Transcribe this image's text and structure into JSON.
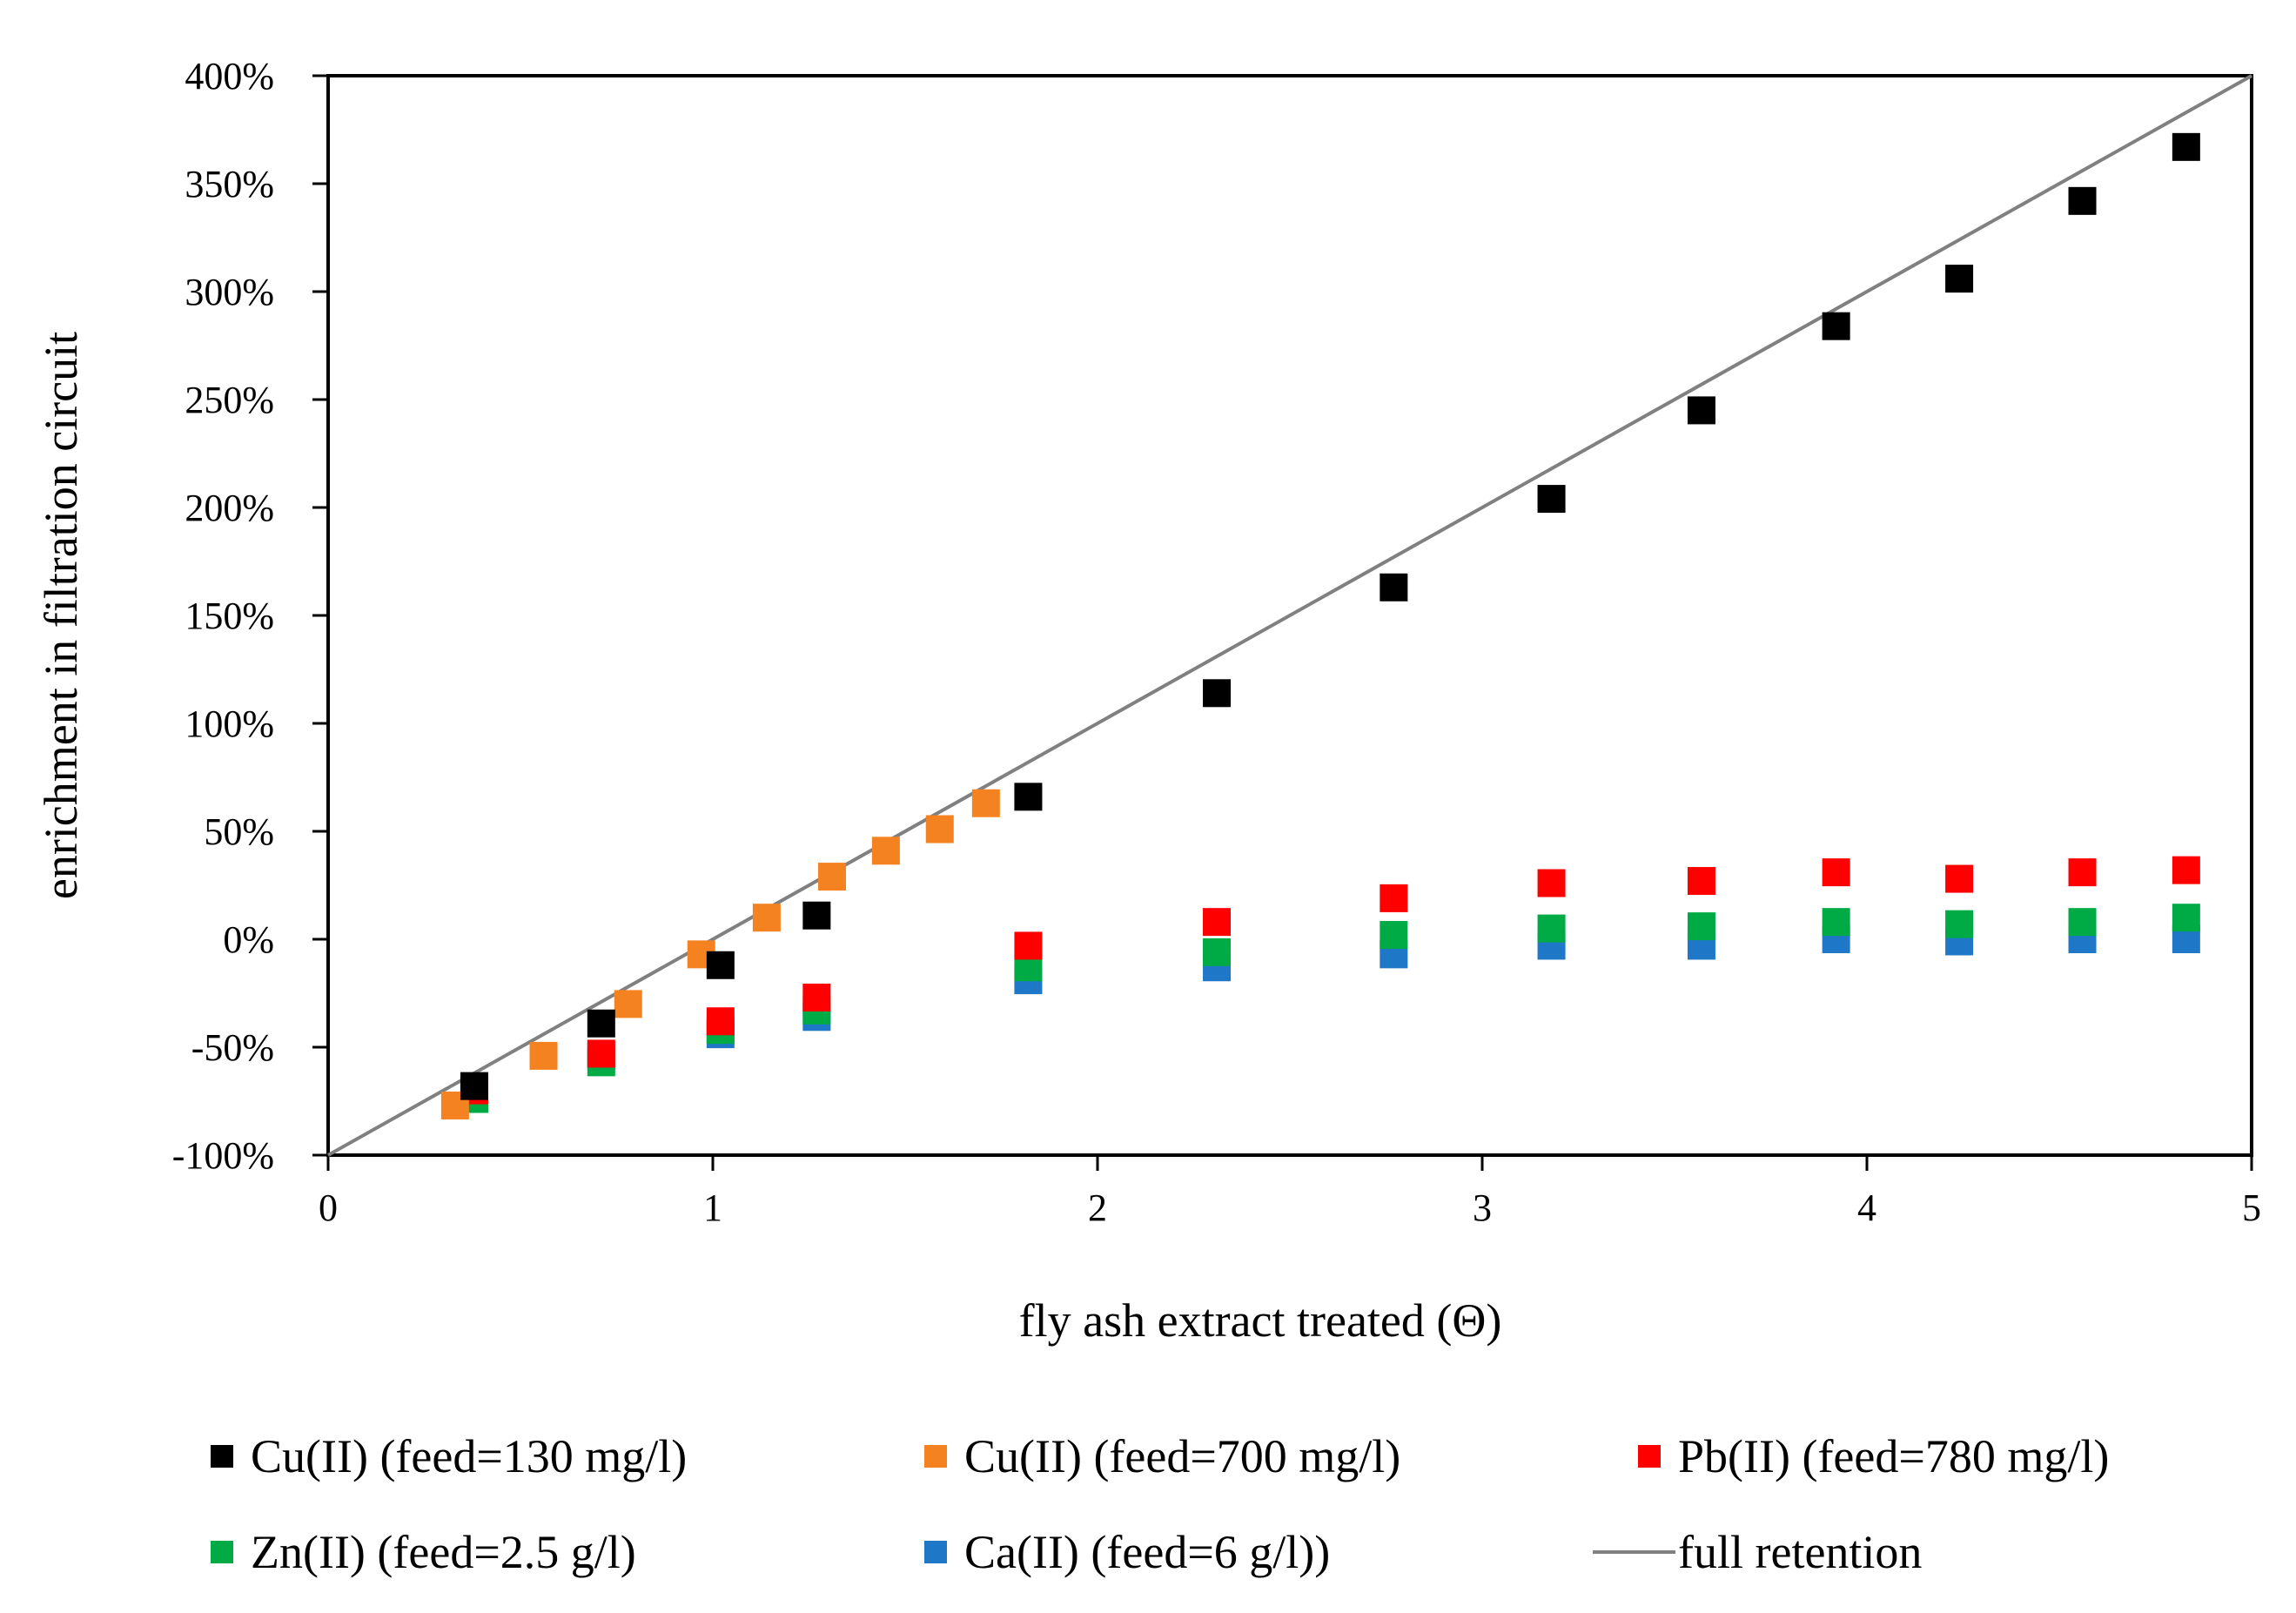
{
  "chart_data": {
    "type": "scatter",
    "title": "",
    "xlabel": "fly ash extract treated (Θ)",
    "ylabel": "enrichment in filtration circuit",
    "xlim": [
      0,
      5
    ],
    "ylim": [
      -100,
      400
    ],
    "x_ticks": [
      0,
      1,
      2,
      3,
      4,
      5
    ],
    "x_tick_labels": [
      "0",
      "1",
      "2",
      "3",
      "4",
      "5"
    ],
    "y_ticks": [
      -100,
      -50,
      0,
      50,
      100,
      150,
      200,
      250,
      300,
      350,
      400
    ],
    "y_tick_labels": [
      "-100%",
      "-50%",
      "0%",
      "50%",
      "100%",
      "150%",
      "200%",
      "250%",
      "300%",
      "350%",
      "400%"
    ],
    "grid": false,
    "legend_position": "bottom",
    "series": [
      {
        "name": "Cu(II) (feed=130 mg/l)",
        "color": "#000000",
        "marker": "square",
        "x": [
          0.38,
          0.71,
          1.02,
          1.27,
          1.82,
          2.31,
          2.77,
          3.18,
          3.57,
          3.92,
          4.24,
          4.56,
          4.83
        ],
        "y": [
          -68,
          -39,
          -12,
          11,
          66,
          114,
          163,
          204,
          245,
          284,
          306,
          342,
          367
        ]
      },
      {
        "name": "Cu(II) (feed=700 mg/l)",
        "color": "#F58220",
        "marker": "square",
        "x": [
          0.33,
          0.56,
          0.78,
          0.97,
          1.14,
          1.31,
          1.45,
          1.59,
          1.71
        ],
        "y": [
          -77,
          -54,
          -30,
          -7,
          10,
          29,
          41,
          51,
          63
        ]
      },
      {
        "name": "Pb(II) (feed=780 mg/l)",
        "color": "#FF0000",
        "marker": "square",
        "x": [
          0.38,
          0.71,
          1.02,
          1.27,
          1.82,
          2.31,
          2.77,
          3.18,
          3.57,
          3.92,
          4.24,
          4.56,
          4.83
        ],
        "y": [
          -70,
          -53,
          -38,
          -27,
          -3,
          8,
          19,
          26,
          27,
          31,
          28,
          31,
          32
        ]
      },
      {
        "name": "Zn(II) (feed=2.5 g/l)",
        "color": "#00AA44",
        "marker": "square",
        "x": [
          0.38,
          0.71,
          1.02,
          1.27,
          1.82,
          2.31,
          2.77,
          3.18,
          3.57,
          3.92,
          4.24,
          4.56,
          4.83
        ],
        "y": [
          -74,
          -57,
          -42,
          -33,
          -13,
          -6,
          2,
          5,
          6,
          8,
          7,
          8,
          10
        ]
      },
      {
        "name": "Ca(II) (feed=6 g/l))",
        "color": "#1F77C8",
        "marker": "square",
        "x": [
          0.38,
          0.71,
          1.02,
          1.27,
          1.82,
          2.31,
          2.77,
          3.18,
          3.57,
          3.92,
          4.24,
          4.56,
          4.83
        ],
        "y": [
          -70,
          -54,
          -44,
          -36,
          -19,
          -13,
          -7,
          -3,
          -3,
          0,
          -1,
          0,
          0
        ]
      }
    ],
    "reference_line": {
      "name": "full retention",
      "color": "#808080",
      "x": [
        0,
        5
      ],
      "y": [
        -100,
        400
      ]
    }
  }
}
